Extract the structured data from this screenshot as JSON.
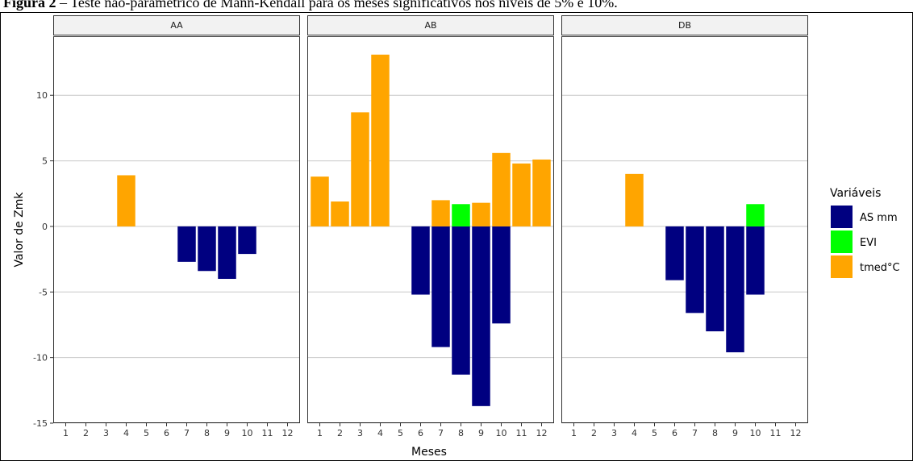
{
  "caption": {
    "label": "Figura 2",
    "text": " – Teste não-paramétrico de Mann-Kendall para os meses significativos nos níveis de 5% e 10%."
  },
  "colors": {
    "AS mm": "#000080",
    "EVI": "#00ff00",
    "tmed°C": "#ffa500",
    "grid": "#c8c8c8",
    "strip_bg": "#f2f2f2",
    "panel_border": "#333333"
  },
  "chart_data": {
    "type": "bar",
    "xlabel": "Meses",
    "ylabel": "Valor de Zmk",
    "ylim": [
      -15,
      14.5
    ],
    "yticks": [
      -15,
      -10,
      -5,
      0,
      5,
      10
    ],
    "x": [
      1,
      2,
      3,
      4,
      5,
      6,
      7,
      8,
      9,
      10,
      11,
      12
    ],
    "legend": {
      "title": "Variáveis",
      "placement": "right",
      "entries": [
        "AS mm",
        "EVI",
        "tmed°C"
      ]
    },
    "panels": [
      {
        "name": "AA",
        "series": [
          {
            "name": "AS mm",
            "points": [
              [
                7,
                -2.7
              ],
              [
                8,
                -3.4
              ],
              [
                9,
                -4.0
              ],
              [
                10,
                -2.1
              ]
            ]
          },
          {
            "name": "EVI",
            "points": []
          },
          {
            "name": "tmed°C",
            "points": [
              [
                4,
                3.9
              ]
            ]
          }
        ]
      },
      {
        "name": "AB",
        "series": [
          {
            "name": "AS mm",
            "points": [
              [
                6,
                -5.2
              ],
              [
                7,
                -9.2
              ],
              [
                8,
                -11.3
              ],
              [
                9,
                -13.7
              ],
              [
                10,
                -7.4
              ]
            ]
          },
          {
            "name": "EVI",
            "points": [
              [
                8,
                1.7
              ]
            ]
          },
          {
            "name": "tmed°C",
            "points": [
              [
                1,
                3.8
              ],
              [
                2,
                1.9
              ],
              [
                3,
                8.7
              ],
              [
                4,
                13.1
              ],
              [
                7,
                2.0
              ],
              [
                9,
                1.8
              ],
              [
                10,
                5.6
              ],
              [
                11,
                4.8
              ],
              [
                12,
                5.1
              ]
            ]
          }
        ]
      },
      {
        "name": "DB",
        "series": [
          {
            "name": "AS mm",
            "points": [
              [
                6,
                -4.1
              ],
              [
                7,
                -6.6
              ],
              [
                8,
                -8.0
              ],
              [
                9,
                -9.6
              ],
              [
                10,
                -5.2
              ]
            ]
          },
          {
            "name": "EVI",
            "points": [
              [
                10,
                1.7
              ]
            ]
          },
          {
            "name": "tmed°C",
            "points": [
              [
                4,
                4.0
              ]
            ]
          }
        ]
      }
    ]
  }
}
